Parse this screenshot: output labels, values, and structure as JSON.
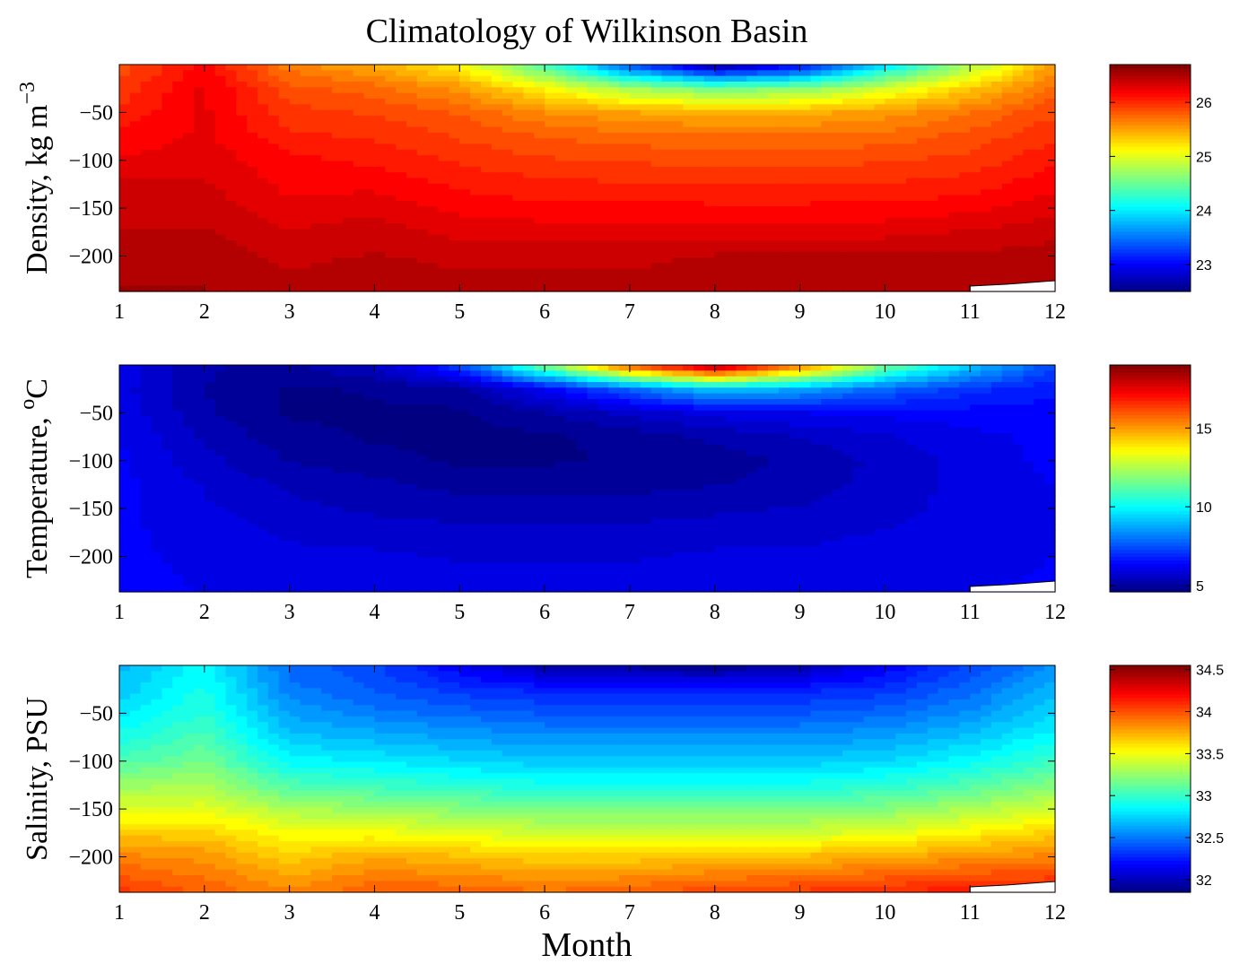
{
  "figure": {
    "title": "Climatology of Wilkinson Basin",
    "xlabel": "Month"
  },
  "chart_data": [
    {
      "type": "heatmap",
      "ylabel": "Density, kg m",
      "ylabel_superscript": "−3",
      "x_ticks": [
        "1",
        "2",
        "3",
        "4",
        "5",
        "6",
        "7",
        "8",
        "9",
        "10",
        "11",
        "12"
      ],
      "y_ticks": [
        "−50",
        "−100",
        "−150",
        "−200"
      ],
      "xlim": [
        1,
        12
      ],
      "ylim": [
        -237,
        0
      ],
      "colorbar": {
        "range": [
          22.5,
          26.7
        ],
        "ticks": [
          "23",
          "24",
          "25",
          "26"
        ],
        "tick_values": [
          23,
          24,
          25,
          26
        ]
      },
      "colormap": "jet",
      "depths": [
        0,
        -25,
        -50,
        -75,
        -100,
        -125,
        -150,
        -175,
        -200,
        -237
      ],
      "values": [
        [
          25.9,
          26.2,
          25.7,
          25.5,
          25.2,
          24.4,
          23.4,
          22.6,
          23.0,
          24.0,
          24.8,
          25.6
        ],
        [
          26.0,
          26.3,
          25.9,
          25.8,
          25.6,
          25.2,
          24.8,
          24.6,
          24.7,
          25.0,
          25.4,
          25.8
        ],
        [
          26.1,
          26.3,
          26.0,
          25.95,
          25.85,
          25.65,
          25.55,
          25.5,
          25.5,
          25.6,
          25.75,
          25.95
        ],
        [
          26.2,
          26.3,
          26.1,
          26.05,
          25.95,
          25.85,
          25.8,
          25.78,
          25.78,
          25.8,
          25.9,
          26.05
        ],
        [
          26.3,
          26.35,
          26.2,
          26.15,
          26.05,
          25.98,
          25.95,
          25.93,
          25.93,
          25.95,
          26.0,
          26.15
        ],
        [
          26.4,
          26.4,
          26.25,
          26.25,
          26.15,
          26.1,
          26.08,
          26.07,
          26.07,
          26.08,
          26.12,
          26.25
        ],
        [
          26.45,
          26.45,
          26.3,
          26.35,
          26.25,
          26.2,
          26.2,
          26.2,
          26.2,
          26.2,
          26.25,
          26.35
        ],
        [
          26.5,
          26.5,
          26.4,
          26.45,
          26.35,
          26.35,
          26.35,
          26.35,
          26.35,
          26.35,
          26.4,
          26.45
        ],
        [
          26.55,
          26.55,
          26.45,
          26.5,
          26.45,
          26.45,
          26.45,
          26.5,
          26.5,
          26.5,
          26.5,
          26.55
        ],
        [
          26.6,
          26.6,
          26.55,
          26.6,
          26.55,
          26.55,
          26.55,
          26.6,
          26.6,
          26.6,
          26.6,
          26.6
        ]
      ]
    },
    {
      "type": "heatmap",
      "ylabel": "Temperature, ",
      "ylabel_superscript": "o",
      "ylabel_unit": "C",
      "x_ticks": [
        "1",
        "2",
        "3",
        "4",
        "5",
        "6",
        "7",
        "8",
        "9",
        "10",
        "11",
        "12"
      ],
      "y_ticks": [
        "−50",
        "−100",
        "−150",
        "−200"
      ],
      "xlim": [
        1,
        12
      ],
      "ylim": [
        -237,
        0
      ],
      "colorbar": {
        "range": [
          4.6,
          19.0
        ],
        "ticks": [
          "5",
          "10",
          "15"
        ],
        "tick_values": [
          5,
          10,
          15
        ]
      },
      "colormap": "jet",
      "depths": [
        0,
        -25,
        -50,
        -75,
        -100,
        -125,
        -150,
        -175,
        -200,
        -237
      ],
      "values": [
        [
          6.3,
          5.4,
          5.2,
          5.8,
          7.5,
          12.0,
          16.5,
          19.0,
          16.0,
          12.0,
          9.5,
          7.5
        ],
        [
          6.2,
          5.3,
          4.9,
          5.0,
          5.2,
          6.5,
          8.0,
          9.5,
          9.0,
          8.0,
          7.3,
          6.8
        ],
        [
          6.3,
          5.4,
          4.9,
          4.9,
          4.9,
          5.3,
          5.8,
          6.2,
          6.4,
          6.5,
          6.6,
          6.6
        ],
        [
          6.4,
          5.6,
          5.1,
          4.9,
          4.8,
          4.9,
          5.1,
          5.4,
          5.7,
          6.0,
          6.3,
          6.5
        ],
        [
          6.5,
          5.8,
          5.3,
          5.1,
          4.9,
          4.9,
          5.0,
          5.1,
          5.4,
          5.8,
          6.2,
          6.5
        ],
        [
          6.5,
          6.0,
          5.6,
          5.4,
          5.2,
          5.2,
          5.2,
          5.3,
          5.5,
          5.8,
          6.2,
          6.4
        ],
        [
          6.5,
          6.1,
          5.8,
          5.6,
          5.5,
          5.5,
          5.5,
          5.6,
          5.7,
          5.9,
          6.2,
          6.4
        ],
        [
          6.5,
          6.2,
          6.0,
          5.9,
          5.8,
          5.8,
          5.8,
          5.9,
          5.95,
          6.05,
          6.25,
          6.4
        ],
        [
          6.5,
          6.3,
          6.1,
          6.1,
          6.0,
          6.0,
          6.0,
          6.1,
          6.1,
          6.2,
          6.3,
          6.4
        ],
        [
          6.5,
          6.4,
          6.3,
          6.3,
          6.25,
          6.25,
          6.25,
          6.3,
          6.3,
          6.35,
          6.4,
          6.45
        ]
      ]
    },
    {
      "type": "heatmap",
      "ylabel": "Salinity, PSU",
      "x_ticks": [
        "1",
        "2",
        "3",
        "4",
        "5",
        "6",
        "7",
        "8",
        "9",
        "10",
        "11",
        "12"
      ],
      "y_ticks": [
        "−50",
        "−100",
        "−150",
        "−200"
      ],
      "xlim": [
        1,
        12
      ],
      "ylim": [
        -237,
        0
      ],
      "colorbar": {
        "range": [
          31.85,
          34.55
        ],
        "ticks": [
          "32",
          "32.5",
          "33",
          "33.5",
          "34",
          "34.5"
        ],
        "tick_values": [
          32,
          32.5,
          33,
          33.5,
          34,
          34.5
        ]
      },
      "colormap": "jet",
      "depths": [
        0,
        -25,
        -50,
        -75,
        -100,
        -125,
        -150,
        -175,
        -200,
        -237
      ],
      "values": [
        [
          32.7,
          32.9,
          32.5,
          32.4,
          32.2,
          32.0,
          31.95,
          31.9,
          32.0,
          32.2,
          32.4,
          32.6
        ],
        [
          32.75,
          32.95,
          32.55,
          32.45,
          32.35,
          32.3,
          32.3,
          32.3,
          32.3,
          32.35,
          32.5,
          32.7
        ],
        [
          32.85,
          33.0,
          32.65,
          32.55,
          32.5,
          32.45,
          32.45,
          32.45,
          32.45,
          32.5,
          32.6,
          32.8
        ],
        [
          32.95,
          33.1,
          32.75,
          32.7,
          32.65,
          32.6,
          32.6,
          32.6,
          32.6,
          32.65,
          32.75,
          32.9
        ],
        [
          33.1,
          33.2,
          32.9,
          32.85,
          32.8,
          32.75,
          32.75,
          32.75,
          32.75,
          32.8,
          32.9,
          33.05
        ],
        [
          33.3,
          33.35,
          33.1,
          33.05,
          33.0,
          32.95,
          32.95,
          32.95,
          32.95,
          33.0,
          33.1,
          33.25
        ],
        [
          33.5,
          33.5,
          33.35,
          33.3,
          33.25,
          33.2,
          33.2,
          33.2,
          33.2,
          33.25,
          33.35,
          33.45
        ],
        [
          33.7,
          33.7,
          33.55,
          33.55,
          33.5,
          33.45,
          33.45,
          33.45,
          33.45,
          33.5,
          33.6,
          33.7
        ],
        [
          33.9,
          33.85,
          33.7,
          33.8,
          33.75,
          33.7,
          33.7,
          33.75,
          33.75,
          33.8,
          33.85,
          33.9
        ],
        [
          34.1,
          34.0,
          33.9,
          34.0,
          34.0,
          33.95,
          34.0,
          34.05,
          34.1,
          34.15,
          34.2,
          34.2
        ]
      ]
    }
  ]
}
